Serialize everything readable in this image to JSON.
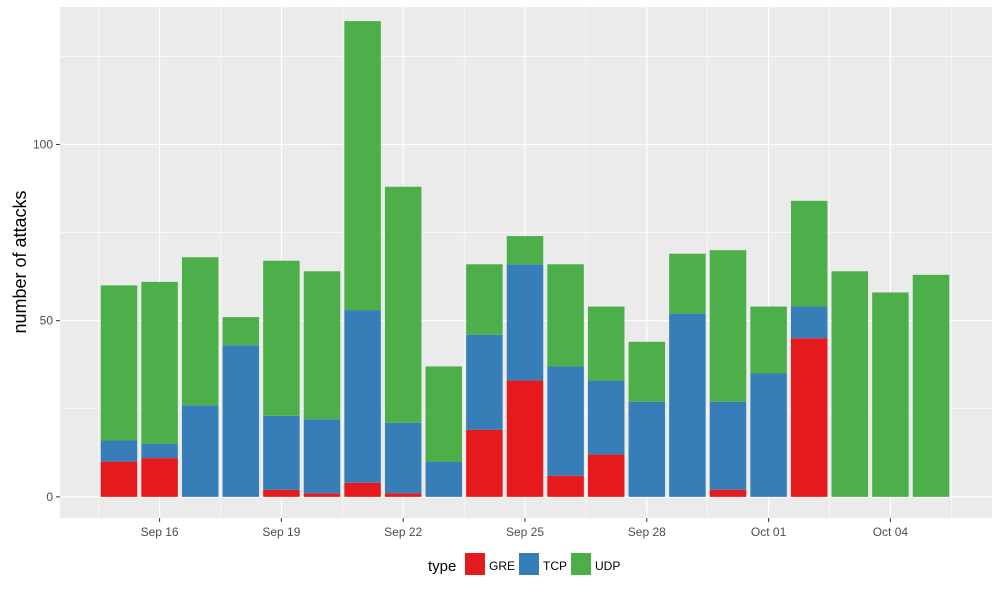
{
  "chart_data": {
    "type": "bar",
    "stacked": true,
    "title": "",
    "xlabel": "",
    "ylabel": "number of attacks",
    "ylim": [
      -6,
      139
    ],
    "y_ticks": [
      0,
      50,
      100
    ],
    "x_tick_labels": [
      "Sep 16",
      "Sep 19",
      "Sep 22",
      "Sep 25",
      "Sep 28",
      "Oct 01",
      "Oct 04"
    ],
    "x_tick_indices": [
      1,
      4,
      7,
      10,
      13,
      16,
      19
    ],
    "categories": [
      "Sep 15",
      "Sep 16",
      "Sep 17",
      "Sep 18",
      "Sep 19",
      "Sep 20",
      "Sep 21",
      "Sep 22",
      "Sep 23",
      "Sep 24",
      "Sep 25",
      "Sep 26",
      "Sep 27",
      "Sep 28",
      "Sep 29",
      "Sep 30",
      "Oct 01",
      "Oct 02",
      "Oct 03",
      "Oct 04",
      "Oct 05"
    ],
    "series": [
      {
        "name": "GRE",
        "color": "#e41a1c",
        "values": [
          10,
          11,
          0,
          0,
          2,
          1,
          4,
          1,
          0,
          19,
          33,
          6,
          12,
          0,
          0,
          2,
          0,
          45,
          0,
          0,
          0
        ]
      },
      {
        "name": "TCP",
        "color": "#377eb8",
        "values": [
          6,
          4,
          26,
          43,
          21,
          21,
          49,
          20,
          10,
          27,
          33,
          31,
          21,
          27,
          52,
          25,
          35,
          9,
          0,
          0,
          0
        ]
      },
      {
        "name": "UDP",
        "color": "#4daf4a",
        "values": [
          44,
          46,
          42,
          8,
          44,
          42,
          82,
          67,
          27,
          20,
          8,
          29,
          21,
          17,
          17,
          43,
          19,
          30,
          64,
          58,
          63
        ]
      }
    ],
    "legend": {
      "title": "type",
      "placement": "bottom"
    },
    "grid": true,
    "panel_background": "#ebebeb",
    "grid_color": "#ffffff"
  }
}
